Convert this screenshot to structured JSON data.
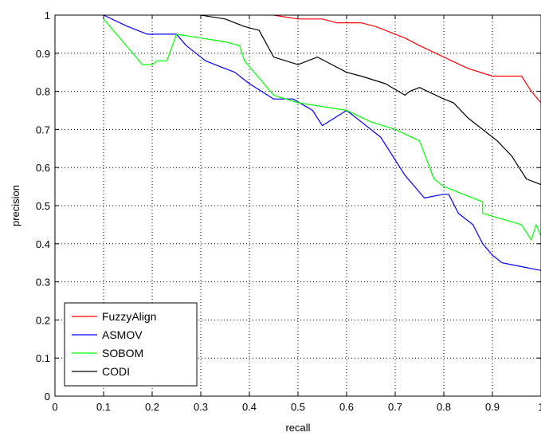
{
  "chart_data": {
    "type": "line",
    "xlabel": "recall",
    "ylabel": "precision",
    "xlim": [
      0,
      1
    ],
    "ylim": [
      0,
      1
    ],
    "grid": true,
    "legend_position": "bottom-left",
    "x_ticks": [
      "0",
      "0.1",
      "0.2",
      "0.3",
      "0.4",
      "0.5",
      "0.6",
      "0.7",
      "0.8",
      "0.9",
      "1"
    ],
    "y_ticks": [
      "0",
      "0.1",
      "0.2",
      "0.3",
      "0.4",
      "0.5",
      "0.6",
      "0.7",
      "0.8",
      "0.9",
      "1"
    ],
    "series": [
      {
        "name": "FuzzyAlign",
        "color": "#ff0000",
        "points": [
          [
            0.45,
            1.0
          ],
          [
            0.5,
            0.99
          ],
          [
            0.55,
            0.99
          ],
          [
            0.58,
            0.98
          ],
          [
            0.63,
            0.98
          ],
          [
            0.66,
            0.97
          ],
          [
            0.7,
            0.95
          ],
          [
            0.72,
            0.94
          ],
          [
            0.75,
            0.92
          ],
          [
            0.8,
            0.89
          ],
          [
            0.85,
            0.86
          ],
          [
            0.9,
            0.84
          ],
          [
            0.92,
            0.84
          ],
          [
            0.96,
            0.84
          ],
          [
            0.98,
            0.8
          ],
          [
            1.0,
            0.77
          ]
        ]
      },
      {
        "name": "ASMOV",
        "color": "#0000ff",
        "points": [
          [
            0.1,
            1.0
          ],
          [
            0.15,
            0.97
          ],
          [
            0.19,
            0.95
          ],
          [
            0.25,
            0.95
          ],
          [
            0.27,
            0.92
          ],
          [
            0.31,
            0.88
          ],
          [
            0.35,
            0.86
          ],
          [
            0.37,
            0.85
          ],
          [
            0.4,
            0.82
          ],
          [
            0.45,
            0.78
          ],
          [
            0.49,
            0.78
          ],
          [
            0.53,
            0.75
          ],
          [
            0.55,
            0.71
          ],
          [
            0.6,
            0.75
          ],
          [
            0.63,
            0.72
          ],
          [
            0.67,
            0.68
          ],
          [
            0.72,
            0.58
          ],
          [
            0.76,
            0.52
          ],
          [
            0.8,
            0.53
          ],
          [
            0.81,
            0.53
          ],
          [
            0.83,
            0.48
          ],
          [
            0.86,
            0.45
          ],
          [
            0.88,
            0.4
          ],
          [
            0.9,
            0.37
          ],
          [
            0.92,
            0.35
          ],
          [
            0.96,
            0.34
          ],
          [
            1.0,
            0.33
          ]
        ]
      },
      {
        "name": "SOBOM",
        "color": "#00ff00",
        "points": [
          [
            0.1,
            0.99
          ],
          [
            0.14,
            0.93
          ],
          [
            0.18,
            0.87
          ],
          [
            0.2,
            0.87
          ],
          [
            0.21,
            0.88
          ],
          [
            0.23,
            0.88
          ],
          [
            0.25,
            0.95
          ],
          [
            0.3,
            0.94
          ],
          [
            0.35,
            0.93
          ],
          [
            0.38,
            0.92
          ],
          [
            0.39,
            0.88
          ],
          [
            0.45,
            0.79
          ],
          [
            0.5,
            0.77
          ],
          [
            0.55,
            0.76
          ],
          [
            0.6,
            0.75
          ],
          [
            0.65,
            0.72
          ],
          [
            0.7,
            0.7
          ],
          [
            0.75,
            0.67
          ],
          [
            0.78,
            0.57
          ],
          [
            0.8,
            0.55
          ],
          [
            0.88,
            0.51
          ],
          [
            0.88,
            0.48
          ],
          [
            0.96,
            0.45
          ],
          [
            0.98,
            0.41
          ],
          [
            0.99,
            0.45
          ],
          [
            1.0,
            0.42
          ]
        ]
      },
      {
        "name": "CODI",
        "color": "#000000",
        "points": [
          [
            0.3,
            1.0
          ],
          [
            0.35,
            0.99
          ],
          [
            0.39,
            0.97
          ],
          [
            0.42,
            0.96
          ],
          [
            0.45,
            0.89
          ],
          [
            0.5,
            0.87
          ],
          [
            0.54,
            0.89
          ],
          [
            0.57,
            0.87
          ],
          [
            0.6,
            0.85
          ],
          [
            0.63,
            0.84
          ],
          [
            0.68,
            0.82
          ],
          [
            0.72,
            0.79
          ],
          [
            0.73,
            0.8
          ],
          [
            0.75,
            0.81
          ],
          [
            0.8,
            0.78
          ],
          [
            0.82,
            0.77
          ],
          [
            0.85,
            0.73
          ],
          [
            0.88,
            0.7
          ],
          [
            0.9,
            0.68
          ],
          [
            0.91,
            0.67
          ],
          [
            0.94,
            0.63
          ],
          [
            0.97,
            0.57
          ],
          [
            1.0,
            0.555
          ]
        ]
      }
    ]
  }
}
